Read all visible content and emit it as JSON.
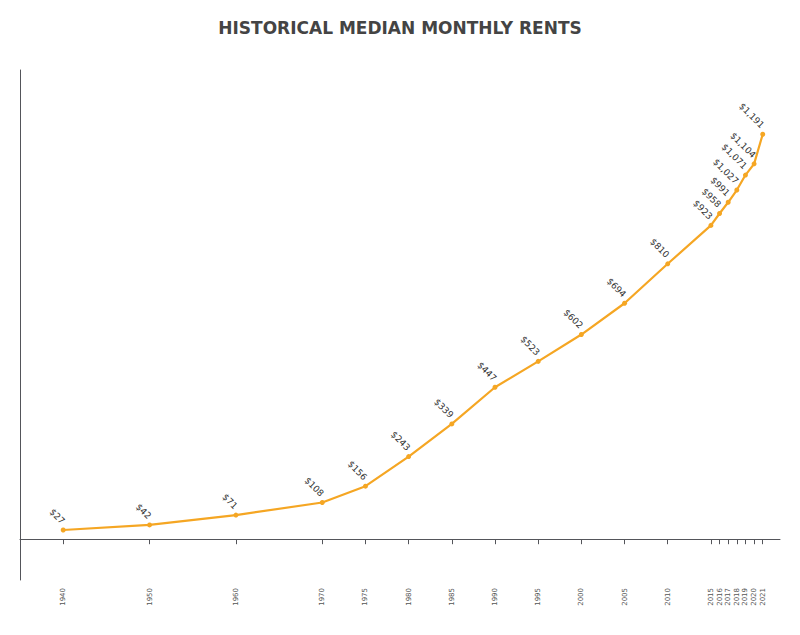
{
  "chart_data": {
    "type": "line",
    "title": "HISTORICAL MEDIAN MONTHLY RENTS",
    "x": [
      1940,
      1950,
      1960,
      1970,
      1975,
      1980,
      1985,
      1990,
      1995,
      2000,
      2005,
      2010,
      2015,
      2016,
      2017,
      2018,
      2019,
      2020,
      2021
    ],
    "values": [
      27,
      42,
      71,
      108,
      156,
      243,
      339,
      447,
      523,
      602,
      694,
      810,
      923,
      958,
      991,
      1027,
      1071,
      1104,
      1191
    ],
    "value_labels": [
      "$27",
      "$42",
      "$71",
      "$108",
      "$156",
      "$243",
      "$339",
      "$447",
      "$523",
      "$602",
      "$694",
      "$810",
      "$923",
      "$958",
      "$991",
      "$1,027",
      "$1,071",
      "$1,104",
      "$1,191"
    ],
    "color": "#F5A623",
    "xlim": [
      1935,
      2023
    ],
    "ylim": [
      -120,
      1380
    ],
    "xticks": [
      1940,
      1950,
      1960,
      1970,
      1975,
      1980,
      1985,
      1990,
      1995,
      2000,
      2005,
      2010,
      2015,
      2016,
      2017,
      2018,
      2019,
      2020,
      2021
    ],
    "grid": false,
    "data_labels": true,
    "tick_labels": "x",
    "marker": "circle"
  }
}
